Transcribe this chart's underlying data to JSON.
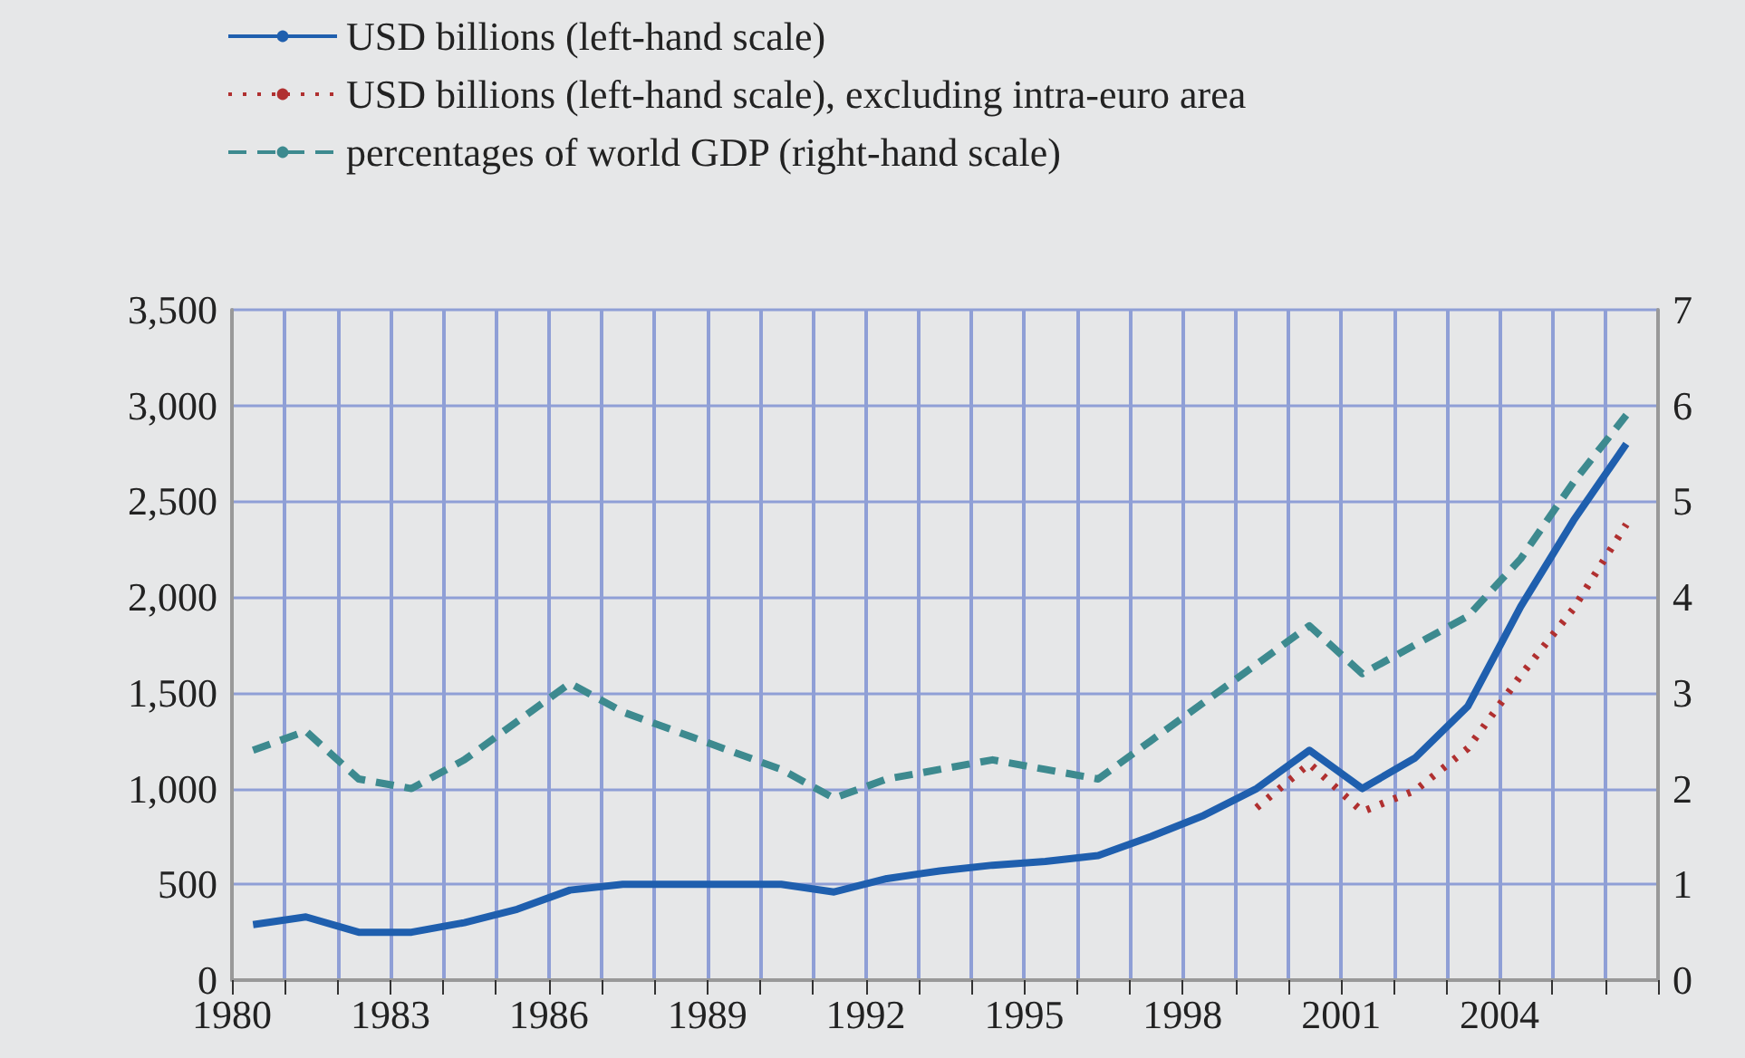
{
  "chart_data": {
    "type": "line",
    "x": [
      1980.4,
      1981.4,
      1982.4,
      1983.4,
      1984.4,
      1985.4,
      1986.4,
      1987.4,
      1988.4,
      1989.4,
      1990.4,
      1991.4,
      1992.4,
      1993.4,
      1994.4,
      1995.4,
      1996.4,
      1997.4,
      1998.4,
      1999.4,
      2000.4,
      2001.4,
      2002.4,
      2003.4,
      2004.4,
      2005.4,
      2006.4
    ],
    "series": [
      {
        "name": "USD billions (left-hand scale)",
        "color": "#1f5fae",
        "line_style": "solid",
        "values": [
          290,
          330,
          250,
          250,
          300,
          370,
          470,
          500,
          500,
          500,
          500,
          460,
          530,
          570,
          600,
          620,
          650,
          750,
          860,
          1000,
          1200,
          1000,
          1160,
          1430,
          1950,
          2400,
          2800
        ]
      },
      {
        "name": "USD billions (left-hand scale), excluding intra-euro area",
        "color": "#b03030",
        "line_style": "dotted",
        "values": [
          null,
          null,
          null,
          null,
          null,
          null,
          null,
          null,
          null,
          null,
          null,
          null,
          null,
          null,
          null,
          null,
          null,
          null,
          null,
          900,
          1130,
          880,
          990,
          1210,
          1590,
          1940,
          2380
        ]
      },
      {
        "name": "percentages of world GDP (right-hand scale)",
        "color": "#3d8a8f",
        "line_style": "dashed",
        "axis": "y2",
        "values": [
          2.4,
          2.6,
          2.1,
          2.0,
          2.3,
          2.7,
          3.1,
          2.8,
          2.6,
          2.4,
          2.2,
          1.9,
          2.1,
          2.2,
          2.3,
          2.2,
          2.1,
          2.5,
          2.9,
          3.3,
          3.7,
          3.2,
          3.5,
          3.8,
          4.4,
          5.2,
          5.9
        ]
      }
    ],
    "xlim": [
      1980,
      2007
    ],
    "xticks": [
      1980,
      {
        "value": 1981,
        "label": null
      },
      {
        "value": 1982,
        "label": null
      },
      1983,
      {
        "value": 1984,
        "label": null
      },
      {
        "value": 1985,
        "label": null
      },
      1986,
      {
        "value": 1987,
        "label": null
      },
      {
        "value": 1988,
        "label": null
      },
      1989,
      {
        "value": 1990,
        "label": null
      },
      {
        "value": 1991,
        "label": null
      },
      1992,
      {
        "value": 1993,
        "label": null
      },
      {
        "value": 1994,
        "label": null
      },
      1995,
      {
        "value": 1996,
        "label": null
      },
      {
        "value": 1997,
        "label": null
      },
      1998,
      {
        "value": 1999,
        "label": null
      },
      {
        "value": 2000,
        "label": null
      },
      2001,
      {
        "value": 2002,
        "label": null
      },
      {
        "value": 2003,
        "label": null
      },
      2004,
      {
        "value": 2005,
        "label": null
      },
      {
        "value": 2006,
        "label": null
      },
      {
        "value": 2007,
        "label": null
      }
    ],
    "ylim": [
      0,
      3500
    ],
    "yticks": [
      {
        "value": 0,
        "label": "0"
      },
      {
        "value": 500,
        "label": "500"
      },
      {
        "value": 1000,
        "label": "1,000"
      },
      {
        "value": 1500,
        "label": "1,500"
      },
      {
        "value": 2000,
        "label": "2,000"
      },
      {
        "value": 2500,
        "label": "2,500"
      },
      {
        "value": 3000,
        "label": "3,000"
      },
      {
        "value": 3500,
        "label": "3,500"
      }
    ],
    "y2lim": [
      0,
      7
    ],
    "y2ticks": [
      0,
      1,
      2,
      3,
      4,
      5,
      6,
      7
    ],
    "grid": true,
    "legend": "top",
    "marker": "none"
  }
}
